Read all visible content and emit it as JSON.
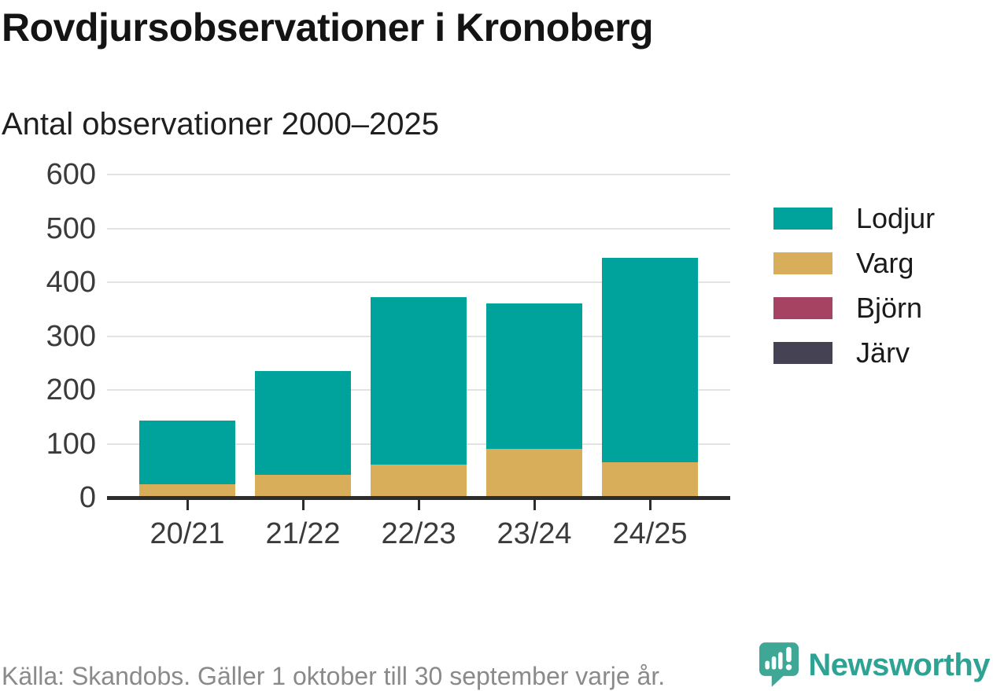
{
  "title": "Rovdjursobservationer i Kronoberg",
  "subtitle": "Antal observationer 2000–2025",
  "source": "Källa: Skandobs. Gäller 1 oktober till 30 september varje år.",
  "branding": {
    "name": "Newsworthy",
    "logo_icon": "newsworthy-speech-bubble-chart-icon",
    "text_color": "#2fa393",
    "mark_color": "#3fa796"
  },
  "chart_data": {
    "type": "bar",
    "stacked": true,
    "title": "Rovdjursobservationer i Kronoberg",
    "subtitle": "Antal observationer 2000–2025",
    "categories": [
      "20/21",
      "21/22",
      "22/23",
      "23/24",
      "24/25"
    ],
    "series": [
      {
        "name": "Lodjur",
        "color": "#00a39b",
        "values": [
          118,
          192,
          310,
          271,
          380
        ]
      },
      {
        "name": "Varg",
        "color": "#d9ae5a",
        "values": [
          25,
          43,
          62,
          90,
          65
        ]
      },
      {
        "name": "Björn",
        "color": "#a64363",
        "values": [
          0,
          0,
          0,
          0,
          0
        ]
      },
      {
        "name": "Järv",
        "color": "#444253",
        "values": [
          0,
          0,
          0,
          0,
          0
        ]
      }
    ],
    "stack_order_bottom_to_top": [
      "Järv",
      "Björn",
      "Varg",
      "Lodjur"
    ],
    "totals": [
      143,
      235,
      372,
      361,
      445
    ],
    "xlabel": "",
    "ylabel": "",
    "ylim": [
      0,
      600
    ],
    "yticks": [
      0,
      100,
      200,
      300,
      400,
      500,
      600
    ],
    "grid": "horizontal",
    "legend_position": "right",
    "axis_color": "#2d2d2d",
    "grid_color": "#e3e3e3",
    "tick_label_color": "#3b3b3b"
  }
}
